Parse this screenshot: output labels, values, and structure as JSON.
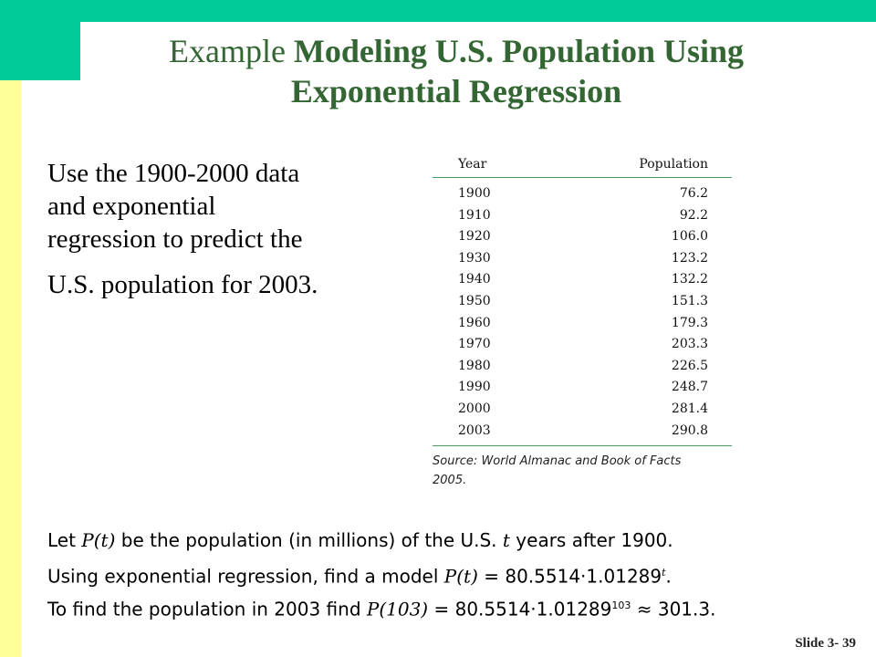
{
  "title": {
    "normal": "Example",
    "bold": "Modeling U.S. Population Using Exponential Regression"
  },
  "intro": [
    "Use the 1900-2000 data",
    "and exponential",
    "regression to predict the",
    "U.S. population for 2003."
  ],
  "table": {
    "headers": [
      "Year",
      "Population"
    ],
    "rows": [
      [
        "1900",
        "76.2"
      ],
      [
        "1910",
        "92.2"
      ],
      [
        "1920",
        "106.0"
      ],
      [
        "1930",
        "123.2"
      ],
      [
        "1940",
        "132.2"
      ],
      [
        "1950",
        "151.3"
      ],
      [
        "1960",
        "179.3"
      ],
      [
        "1970",
        "203.3"
      ],
      [
        "1980",
        "226.5"
      ],
      [
        "1990",
        "248.7"
      ],
      [
        "2000",
        "281.4"
      ],
      [
        "2003",
        "290.8"
      ]
    ],
    "source_line1": "Source: World Almanac and Book of Facts",
    "source_line2": "2005."
  },
  "equations": {
    "line1_a": "Let ",
    "line1_pt": "P(t)",
    "line1_b": " be the population (in millions) of the U.S. ",
    "line1_t": "t",
    "line1_c": " years after 1900.",
    "line2_a": "Using exponential regression, find a model ",
    "line2_pt": "P(t)",
    "line2_b": " = 80.5514·1.01289",
    "line2_exp": "t",
    "line2_c": ".",
    "line3_a": "To find the population in 2003 find ",
    "line3_p": "P(103)",
    "line3_b": " = 80.5514·1.01289",
    "line3_exp": "103",
    "line3_c": " ≈ 301.3."
  },
  "slide_number": "Slide 3- 39",
  "colors": {
    "title": "#336633",
    "band": "#00cc99",
    "sidebar": "#ffff99"
  }
}
